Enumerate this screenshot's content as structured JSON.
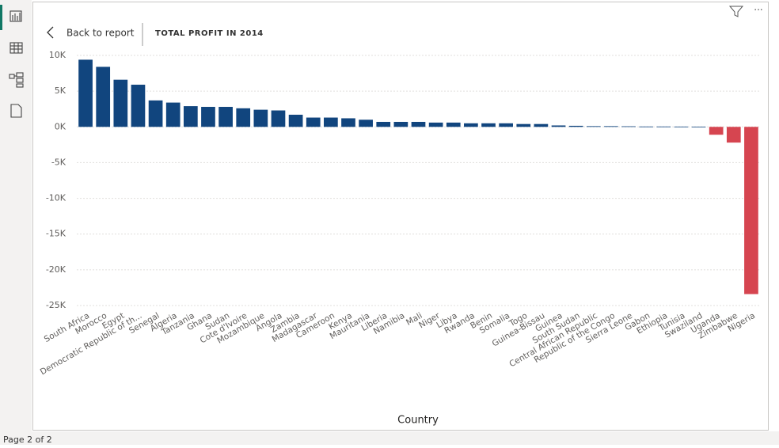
{
  "header": {
    "back": "Back to report"
  },
  "footer": {
    "page": "Page 2 of 2"
  },
  "chart_data": {
    "type": "bar",
    "title": "TOTAL PROFIT IN 2014",
    "x_label": "Country",
    "categories": [
      "South Africa",
      "Morocco",
      "Egypt",
      "Democratic Republic of th...",
      "Senegal",
      "Algeria",
      "Tanzania",
      "Ghana",
      "Sudan",
      "Cote d'Ivoire",
      "Mozambique",
      "Angola",
      "Zambia",
      "Madagascar",
      "Cameroon",
      "Kenya",
      "Mauritania",
      "Liberia",
      "Namibia",
      "Mali",
      "Niger",
      "Libya",
      "Rwanda",
      "Benin",
      "Somalia",
      "Togo",
      "Guinea-Bissau",
      "Guinea",
      "South Sudan",
      "Central African Republic",
      "Republic of the Congo",
      "Sierra Leone",
      "Gabon",
      "Ethiopia",
      "Tunisia",
      "Swaziland",
      "Uganda",
      "Zimbabwe",
      "Nigeria"
    ],
    "values": [
      9400,
      8400,
      6600,
      5900,
      3700,
      3400,
      2900,
      2800,
      2800,
      2600,
      2400,
      2300,
      1700,
      1300,
      1300,
      1200,
      1000,
      700,
      700,
      700,
      600,
      600,
      500,
      500,
      500,
      400,
      400,
      200,
      150,
      100,
      100,
      80,
      50,
      50,
      40,
      30,
      -1100,
      -2200,
      -23400
    ],
    "color": "#11457e",
    "negative_color": "#d64550",
    "ylim": [
      -25000,
      10000
    ],
    "yticks": [
      {
        "value": -25000,
        "label": "-25K"
      },
      {
        "value": -20000,
        "label": "-20K"
      },
      {
        "value": -15000,
        "label": "-15K"
      },
      {
        "value": -10000,
        "label": "-10K"
      },
      {
        "value": -5000,
        "label": "-5K"
      },
      {
        "value": 0,
        "label": "0K"
      },
      {
        "value": 5000,
        "label": "5K"
      },
      {
        "value": 10000,
        "label": "10K"
      }
    ],
    "grid": true
  }
}
